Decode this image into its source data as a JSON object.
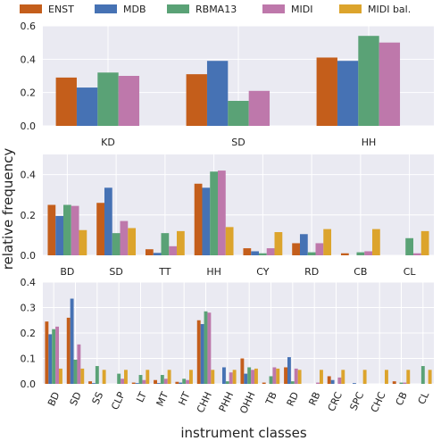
{
  "chart_data": {
    "type": "bar",
    "ylabel": "relative frequency",
    "xlabel": "instrument classes",
    "grid": true,
    "legend_position": "top",
    "series_names": [
      "ENST",
      "MDB",
      "RBMA13",
      "MIDI",
      "MIDI bal."
    ],
    "colors": [
      "#C45E1B",
      "#4672B4",
      "#5AA276",
      "#BE78AB",
      "#DCA42C"
    ],
    "panels": [
      {
        "name": "panel-3-classes",
        "categories": [
          "KD",
          "SD",
          "HH"
        ],
        "ylim": [
          0,
          0.6
        ],
        "yticks": [
          "0.0",
          "0.2",
          "0.4",
          "0.6"
        ],
        "rotate_labels": false,
        "series": [
          {
            "name": "ENST",
            "values": [
              0.29,
              0.31,
              0.41
            ]
          },
          {
            "name": "MDB",
            "values": [
              0.23,
              0.39,
              0.39
            ]
          },
          {
            "name": "RBMA13",
            "values": [
              0.32,
              0.15,
              0.54
            ]
          },
          {
            "name": "MIDI",
            "values": [
              0.3,
              0.21,
              0.5
            ]
          },
          {
            "name": "MIDI bal.",
            "values": [
              null,
              null,
              null
            ]
          }
        ]
      },
      {
        "name": "panel-8-classes",
        "categories": [
          "BD",
          "SD",
          "TT",
          "HH",
          "CY",
          "RD",
          "CB",
          "CL"
        ],
        "ylim": [
          0,
          0.5
        ],
        "yticks": [
          "0.0",
          "0.2",
          "0.4"
        ],
        "rotate_labels": false,
        "series": [
          {
            "name": "ENST",
            "values": [
              0.25,
              0.26,
              0.03,
              0.355,
              0.035,
              0.06,
              0.01,
              0.0
            ]
          },
          {
            "name": "MDB",
            "values": [
              0.195,
              0.335,
              0.012,
              0.335,
              0.02,
              0.105,
              0.0,
              0.0
            ]
          },
          {
            "name": "RBMA13",
            "values": [
              0.25,
              0.11,
              0.11,
              0.415,
              0.01,
              0.015,
              0.015,
              0.085
            ]
          },
          {
            "name": "MIDI",
            "values": [
              0.245,
              0.17,
              0.045,
              0.42,
              0.035,
              0.06,
              0.02,
              0.01
            ]
          },
          {
            "name": "MIDI bal.",
            "values": [
              0.125,
              0.135,
              0.12,
              0.14,
              0.115,
              0.13,
              0.13,
              0.12
            ]
          }
        ]
      },
      {
        "name": "panel-18-classes",
        "categories": [
          "BD",
          "SD",
          "SS",
          "CLP",
          "LT",
          "MT",
          "HT",
          "CHH",
          "PHH",
          "OHH",
          "TB",
          "RD",
          "RB",
          "CRC",
          "SPC",
          "CHC",
          "CB",
          "CL"
        ],
        "ylim": [
          0,
          0.4
        ],
        "yticks": [
          "0.0",
          "0.1",
          "0.2",
          "0.3",
          "0.4"
        ],
        "rotate_labels": true,
        "series": [
          {
            "name": "ENST",
            "values": [
              0.245,
              0.26,
              0.01,
              0.0,
              0.005,
              0.015,
              0.008,
              0.25,
              0.0,
              0.1,
              0.005,
              0.065,
              0.0,
              0.03,
              0.0,
              0.0,
              0.01,
              0.0
            ]
          },
          {
            "name": "MDB",
            "values": [
              0.195,
              0.335,
              0.003,
              0.0,
              0.003,
              0.003,
              0.005,
              0.235,
              0.065,
              0.04,
              0.0,
              0.105,
              0.0,
              0.015,
              0.003,
              0.0,
              0.0,
              0.0
            ]
          },
          {
            "name": "RBMA13",
            "values": [
              0.215,
              0.095,
              0.07,
              0.04,
              0.035,
              0.035,
              0.02,
              0.285,
              0.01,
              0.065,
              0.03,
              0.01,
              0.0,
              0.0,
              0.0,
              0.0,
              0.005,
              0.07
            ]
          },
          {
            "name": "MIDI",
            "values": [
              0.225,
              0.155,
              0.0,
              0.02,
              0.015,
              0.02,
              0.015,
              0.28,
              0.045,
              0.055,
              0.065,
              0.06,
              0.005,
              0.025,
              0.0,
              0.0,
              0.005,
              0.0
            ]
          },
          {
            "name": "MIDI bal.",
            "values": [
              0.06,
              0.06,
              0.055,
              0.055,
              0.055,
              0.055,
              0.055,
              0.055,
              0.055,
              0.06,
              0.06,
              0.055,
              0.055,
              0.055,
              0.055,
              0.055,
              0.055,
              0.055
            ]
          }
        ]
      }
    ]
  }
}
